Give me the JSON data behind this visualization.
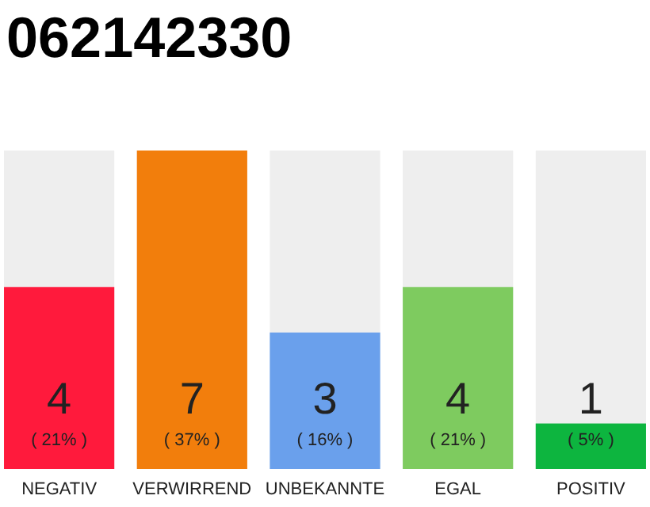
{
  "chart_data": {
    "type": "bar",
    "title": "062142330",
    "categories": [
      "NEGATIV",
      "VERWIRREND",
      "UNBEKANNTE",
      "EGAL",
      "POSITIV"
    ],
    "values": [
      4,
      7,
      3,
      4,
      1
    ],
    "colors": [
      "#ff1a3c",
      "#f27e0c",
      "#6aa0ec",
      "#7ecb5f",
      "#0db53f"
    ],
    "ylim": [
      0,
      7
    ],
    "tick_labels": "x",
    "data_labels": true,
    "annotations": [
      "( 21% )",
      "( 37% )",
      "( 16% )",
      "( 21% )",
      "( 5% )"
    ]
  }
}
